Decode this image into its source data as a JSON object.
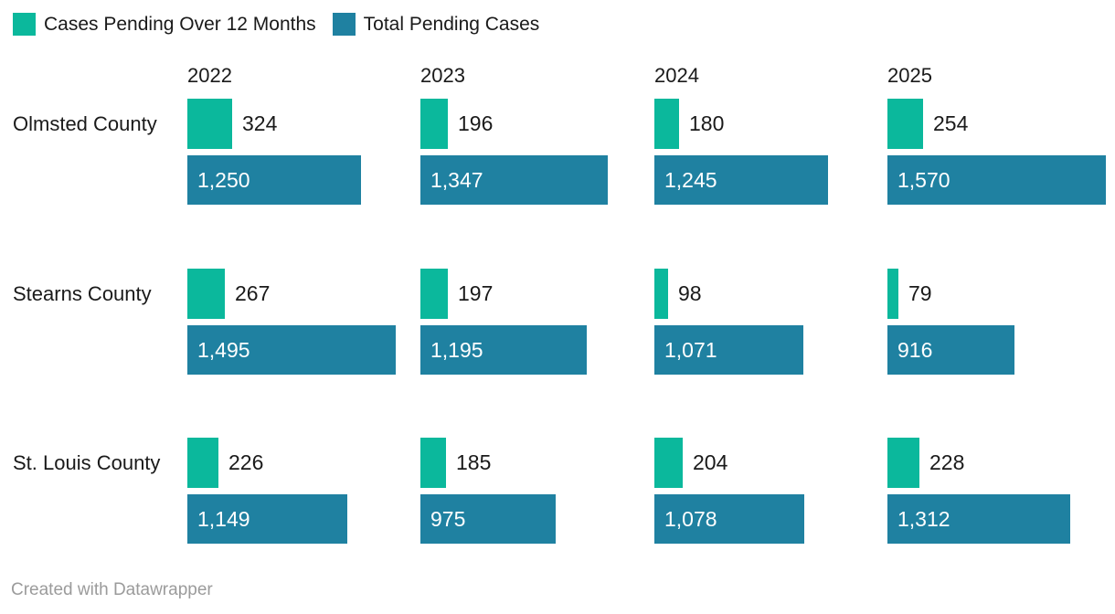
{
  "legend": {
    "items": [
      {
        "label": "Cases Pending Over 12 Months",
        "color": "#0bb89c"
      },
      {
        "label": "Total Pending Cases",
        "color": "#1f81a1"
      }
    ]
  },
  "footer": {
    "attribution": "Created with Datawrapper"
  },
  "chart_data": {
    "type": "bar",
    "orientation": "horizontal",
    "layout": "small multiples: 3 county rows x 4 year columns, two labeled bars per cell, no axes or gridlines",
    "series": [
      {
        "name": "Cases Pending Over 12 Months",
        "color": "#0bb89c"
      },
      {
        "name": "Total Pending Cases",
        "color": "#1f81a1"
      }
    ],
    "years": [
      "2022",
      "2023",
      "2024",
      "2025"
    ],
    "x_range": [
      0,
      1570
    ],
    "rows": [
      {
        "county": "Olmsted County",
        "cells": [
          {
            "year": "2022",
            "over_12_months": 324,
            "over_12_months_label": "324",
            "total_pending": 1250,
            "total_pending_label": "1,250"
          },
          {
            "year": "2023",
            "over_12_months": 196,
            "over_12_months_label": "196",
            "total_pending": 1347,
            "total_pending_label": "1,347"
          },
          {
            "year": "2024",
            "over_12_months": 180,
            "over_12_months_label": "180",
            "total_pending": 1245,
            "total_pending_label": "1,245"
          },
          {
            "year": "2025",
            "over_12_months": 254,
            "over_12_months_label": "254",
            "total_pending": 1570,
            "total_pending_label": "1,570"
          }
        ]
      },
      {
        "county": "Stearns County",
        "cells": [
          {
            "year": "2022",
            "over_12_months": 267,
            "over_12_months_label": "267",
            "total_pending": 1495,
            "total_pending_label": "1,495"
          },
          {
            "year": "2023",
            "over_12_months": 197,
            "over_12_months_label": "197",
            "total_pending": 1195,
            "total_pending_label": "1,195"
          },
          {
            "year": "2024",
            "over_12_months": 98,
            "over_12_months_label": "98",
            "total_pending": 1071,
            "total_pending_label": "1,071"
          },
          {
            "year": "2025",
            "over_12_months": 79,
            "over_12_months_label": "79",
            "total_pending": 916,
            "total_pending_label": "916"
          }
        ]
      },
      {
        "county": "St. Louis County",
        "cells": [
          {
            "year": "2022",
            "over_12_months": 226,
            "over_12_months_label": "226",
            "total_pending": 1149,
            "total_pending_label": "1,149"
          },
          {
            "year": "2023",
            "over_12_months": 185,
            "over_12_months_label": "185",
            "total_pending": 975,
            "total_pending_label": "975"
          },
          {
            "year": "2024",
            "over_12_months": 204,
            "over_12_months_label": "204",
            "total_pending": 1078,
            "total_pending_label": "1,078"
          },
          {
            "year": "2025",
            "over_12_months": 228,
            "over_12_months_label": "228",
            "total_pending": 1312,
            "total_pending_label": "1,312"
          }
        ]
      }
    ]
  }
}
